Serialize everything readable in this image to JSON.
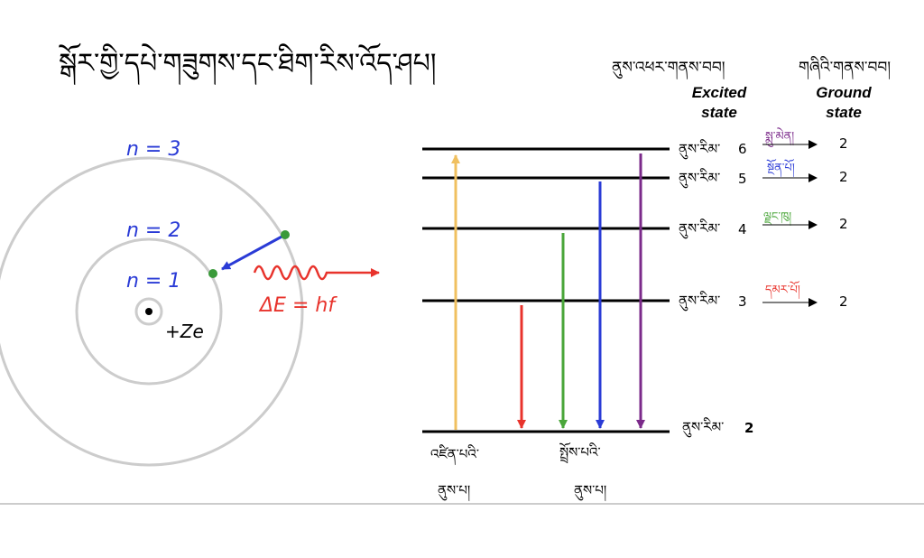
{
  "title": "སྒོར་གྱི་དཔེ་གཟུགས་དང་ཐིག་རིས་འོད་ཤཔ།",
  "atom": {
    "orbits": [
      "n = 1",
      "n = 2",
      "n = 3"
    ],
    "nucleus": "+Ze",
    "photon": "ΔE = hf"
  },
  "columns": {
    "excited": {
      "title": "ནུས་འཕར་གནས་བབ།",
      "label": [
        "Excited",
        "state"
      ]
    },
    "ground": {
      "title": "གཞིའི་གནས་བབ།",
      "label": [
        "Ground",
        "state"
      ]
    }
  },
  "levels": [
    {
      "name": "ནུས་རིམ་",
      "number": "6",
      "color_name": "སྨུ་མེན།",
      "ground": "2"
    },
    {
      "name": "ནུས་རིམ་",
      "number": "5",
      "color_name": "སྔོན་པོ།",
      "ground": "2"
    },
    {
      "name": "ནུས་རིམ་",
      "number": "4",
      "color_name": "ལྗང་ཁུ།",
      "ground": "2"
    },
    {
      "name": "ནུས་རིམ་",
      "number": "3",
      "color_name": "དམར་པོ།",
      "ground": "2"
    },
    {
      "name": "ནུས་རིམ་",
      "number": "2"
    }
  ],
  "bottom_labels": {
    "absorption": [
      "འཛིན་པའི་",
      "ནུས་པ།"
    ],
    "emission": [
      "སྤྲོས་པའི་",
      "ནུས་པ།"
    ]
  }
}
